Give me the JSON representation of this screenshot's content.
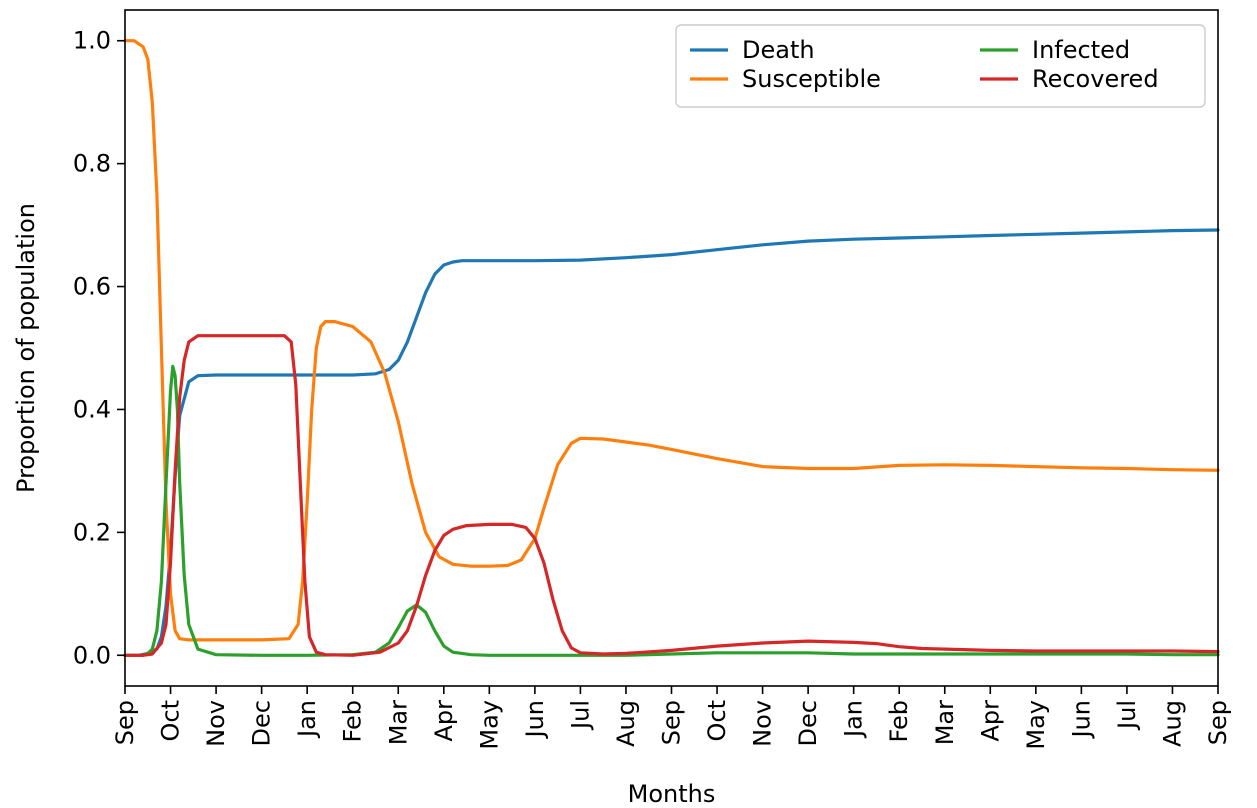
{
  "chart_data": {
    "type": "line",
    "title": "",
    "xlabel": "Months",
    "ylabel": "Proportion of population",
    "xlim": [
      0,
      24
    ],
    "ylim": [
      -0.05,
      1.05
    ],
    "yticks": [
      0.0,
      0.2,
      0.4,
      0.6,
      0.8,
      1.0
    ],
    "ytick_labels": [
      "0.0",
      "0.2",
      "0.4",
      "0.6",
      "0.8",
      "1.0"
    ],
    "xtick_labels": [
      "Sep",
      "Oct",
      "Nov",
      "Dec",
      "Jan",
      "Feb",
      "Mar",
      "Apr",
      "May",
      "Jun",
      "Jul",
      "Aug",
      "Sep",
      "Oct",
      "Nov",
      "Dec",
      "Jan",
      "Feb",
      "Mar",
      "Apr",
      "May",
      "Jun",
      "Jul",
      "Aug",
      "Sep"
    ],
    "grid": false,
    "legend": {
      "placement": "top-right",
      "columns": 2
    },
    "series": [
      {
        "name": "Death",
        "color": "#1f77b4",
        "x": [
          0,
          0.3,
          0.5,
          0.7,
          0.8,
          0.9,
          1.0,
          1.1,
          1.2,
          1.4,
          1.6,
          2,
          3,
          4,
          5,
          5.5,
          5.8,
          6.0,
          6.2,
          6.4,
          6.6,
          6.8,
          7.0,
          7.2,
          7.4,
          7.6,
          8,
          9,
          10,
          11,
          12,
          13,
          14,
          15,
          16,
          17,
          18,
          19,
          20,
          21,
          22,
          23,
          24
        ],
        "y": [
          0,
          0,
          0.003,
          0.01,
          0.03,
          0.08,
          0.17,
          0.29,
          0.39,
          0.445,
          0.455,
          0.456,
          0.456,
          0.456,
          0.456,
          0.458,
          0.465,
          0.48,
          0.51,
          0.55,
          0.59,
          0.62,
          0.635,
          0.64,
          0.642,
          0.642,
          0.642,
          0.642,
          0.643,
          0.647,
          0.652,
          0.66,
          0.668,
          0.674,
          0.677,
          0.679,
          0.681,
          0.683,
          0.685,
          0.687,
          0.689,
          0.691,
          0.692
        ]
      },
      {
        "name": "Susceptible",
        "color": "#ff7f0e",
        "x": [
          0,
          0.2,
          0.4,
          0.5,
          0.6,
          0.7,
          0.8,
          0.9,
          1.0,
          1.1,
          1.2,
          1.4,
          2,
          3,
          3.6,
          3.8,
          3.9,
          4.0,
          4.1,
          4.2,
          4.3,
          4.4,
          4.6,
          5.0,
          5.4,
          5.7,
          6.0,
          6.3,
          6.6,
          6.9,
          7.2,
          7.6,
          8,
          8.4,
          8.7,
          9.0,
          9.2,
          9.5,
          9.8,
          10,
          10.5,
          11,
          11.5,
          12,
          13,
          14,
          15,
          16,
          17,
          18,
          19,
          20,
          21,
          22,
          23,
          24
        ],
        "y": [
          1.0,
          1.0,
          0.99,
          0.97,
          0.9,
          0.75,
          0.5,
          0.25,
          0.1,
          0.04,
          0.027,
          0.025,
          0.025,
          0.025,
          0.027,
          0.05,
          0.12,
          0.25,
          0.4,
          0.5,
          0.535,
          0.543,
          0.543,
          0.535,
          0.51,
          0.46,
          0.38,
          0.28,
          0.2,
          0.16,
          0.148,
          0.145,
          0.145,
          0.146,
          0.155,
          0.19,
          0.24,
          0.31,
          0.345,
          0.353,
          0.352,
          0.347,
          0.342,
          0.335,
          0.32,
          0.307,
          0.304,
          0.304,
          0.309,
          0.31,
          0.309,
          0.307,
          0.305,
          0.304,
          0.302,
          0.301
        ]
      },
      {
        "name": "Infected",
        "color": "#2ca02c",
        "x": [
          0,
          0.4,
          0.5,
          0.6,
          0.7,
          0.8,
          0.9,
          1.0,
          1.05,
          1.1,
          1.15,
          1.2,
          1.3,
          1.4,
          1.6,
          2,
          3,
          4,
          5,
          5.5,
          5.8,
          6.0,
          6.2,
          6.4,
          6.6,
          6.8,
          7.0,
          7.2,
          7.6,
          8,
          9,
          10,
          11,
          12,
          13,
          14,
          15,
          16,
          17,
          18,
          19,
          20,
          21,
          22,
          23,
          24
        ],
        "y": [
          0,
          0.0,
          0.003,
          0.01,
          0.04,
          0.12,
          0.28,
          0.43,
          0.47,
          0.455,
          0.4,
          0.28,
          0.13,
          0.05,
          0.01,
          0.001,
          0.0,
          0.0,
          0.001,
          0.005,
          0.02,
          0.045,
          0.072,
          0.082,
          0.07,
          0.04,
          0.015,
          0.005,
          0.001,
          0.0,
          0.0,
          0.0,
          0.0,
          0.002,
          0.004,
          0.004,
          0.004,
          0.002,
          0.002,
          0.002,
          0.002,
          0.002,
          0.002,
          0.002,
          0.001,
          0.001
        ]
      },
      {
        "name": "Recovered",
        "color": "#d62728",
        "x": [
          0,
          0.4,
          0.6,
          0.8,
          0.9,
          1.0,
          1.1,
          1.2,
          1.3,
          1.4,
          1.6,
          2,
          3,
          3.5,
          3.65,
          3.75,
          3.85,
          3.95,
          4.05,
          4.2,
          4.4,
          5,
          5.6,
          6.0,
          6.2,
          6.4,
          6.6,
          6.8,
          7.0,
          7.2,
          7.5,
          8,
          8.5,
          8.8,
          9.0,
          9.2,
          9.4,
          9.6,
          9.8,
          10,
          10.5,
          11,
          12,
          13,
          14,
          15,
          16,
          16.5,
          17,
          17.5,
          18,
          19,
          20,
          21,
          22,
          23,
          24
        ],
        "y": [
          0,
          0,
          0.002,
          0.02,
          0.05,
          0.15,
          0.3,
          0.42,
          0.48,
          0.51,
          0.52,
          0.52,
          0.52,
          0.52,
          0.51,
          0.44,
          0.28,
          0.12,
          0.03,
          0.005,
          0.001,
          0.0,
          0.005,
          0.02,
          0.04,
          0.08,
          0.13,
          0.17,
          0.195,
          0.205,
          0.211,
          0.213,
          0.213,
          0.208,
          0.19,
          0.15,
          0.09,
          0.04,
          0.012,
          0.004,
          0.002,
          0.003,
          0.008,
          0.015,
          0.02,
          0.023,
          0.021,
          0.019,
          0.014,
          0.011,
          0.01,
          0.008,
          0.007,
          0.007,
          0.007,
          0.007,
          0.006
        ]
      }
    ]
  }
}
